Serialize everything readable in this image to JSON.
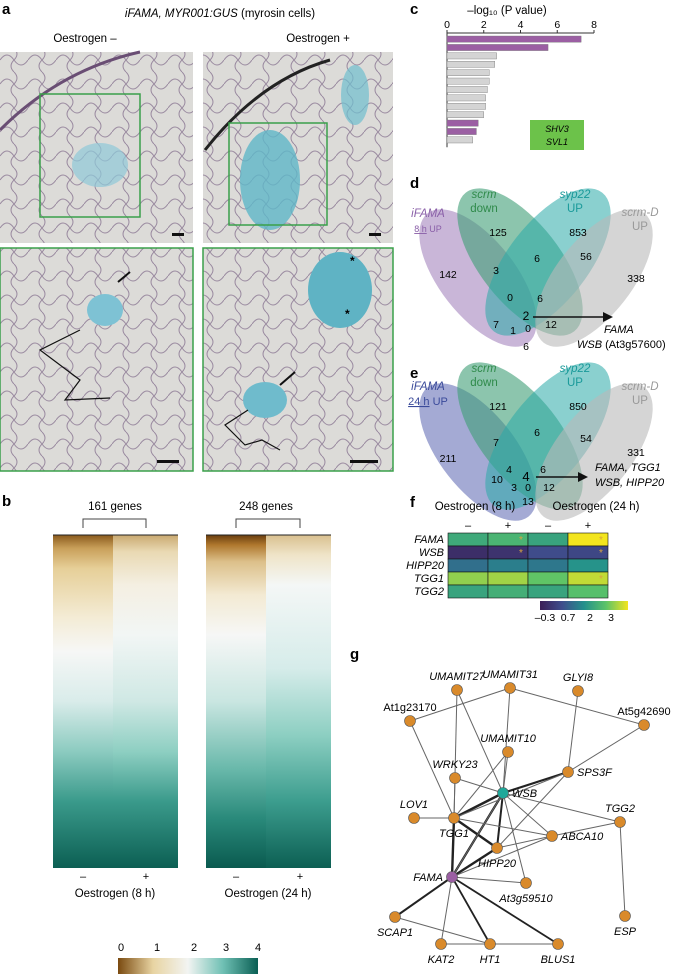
{
  "panels": {
    "a": {
      "letter": "a",
      "title_italic": "iFAMA, MYR001:GUS",
      "title_rest": " (myrosin cells)",
      "col_minus": "Oestrogen –",
      "col_plus": "Oestrogen +"
    },
    "b": {
      "letter": "b",
      "group1_label": "161 genes",
      "group2_label": "248 genes",
      "tick_minus": "–",
      "tick_plus": "+",
      "xlabel1": "Oestrogen (8 h)",
      "xlabel2": "Oestrogen (24 h)",
      "colorbar_ticks": [
        "0",
        "1",
        "2",
        "3",
        "4"
      ]
    },
    "c": {
      "letter": "c",
      "axis_label": "–log₁₀ (P value)",
      "ticks": [
        "0",
        "2",
        "4",
        "6",
        "8"
      ],
      "legend_line1": "SHV3",
      "legend_line2": "SVL1"
    },
    "d": {
      "letter": "d",
      "set_ifama": "iFAMA",
      "set_ifama_sub": "8 h",
      "set_ifama_sub2": " UP",
      "set_scrm": "scrm",
      "set_scrm_sub": "down",
      "set_syp22": "syp22",
      "set_syp22_sub": "UP",
      "set_scrmd": "scrm-D",
      "set_scrmd_sub": "UP",
      "counts": [
        "125",
        "853",
        "142",
        "3",
        "6",
        "56",
        "338",
        "0",
        "6",
        "2",
        "7",
        "1",
        "0",
        "12",
        "6"
      ],
      "callout_line1": "FAMA",
      "callout_line2": "WSB",
      "callout_line2b": " (At3g57600)"
    },
    "e": {
      "letter": "e",
      "set_ifama": "iFAMA",
      "set_ifama_sub": "24 h",
      "set_ifama_sub2": " UP",
      "set_scrm": "scrm",
      "set_scrm_sub": "down",
      "set_syp22": "syp22",
      "set_syp22_sub": "UP",
      "set_scrmd": "scrm-D",
      "set_scrmd_sub": "UP",
      "counts": [
        "121",
        "850",
        "211",
        "7",
        "6",
        "54",
        "331",
        "4",
        "6",
        "4",
        "10",
        "3",
        "0",
        "12",
        "13"
      ],
      "callout_line1": "FAMA, TGG1",
      "callout_line2": "WSB, HIPP20"
    },
    "f": {
      "letter": "f",
      "header1": "Oestrogen (8 h)",
      "header2": "Oestrogen (24 h)",
      "col_signs": [
        "–",
        "+",
        "–",
        "+"
      ],
      "rows": [
        "FAMA",
        "WSB",
        "HIPP20",
        "TGG1",
        "TGG2"
      ],
      "star": "*",
      "colorbar_ticks": [
        "–0.3",
        "0.7",
        "2",
        "3"
      ]
    },
    "g": {
      "letter": "g",
      "nodes": [
        {
          "id": "UMAMIT27",
          "label": "UMAMIT27",
          "italic": true
        },
        {
          "id": "UMAMIT31",
          "label": "UMAMIT31",
          "italic": true
        },
        {
          "id": "GLYI8",
          "label": "GLYI8",
          "italic": true
        },
        {
          "id": "At1g23170",
          "label": "At1g23170",
          "italic": false
        },
        {
          "id": "At5g42690",
          "label": "At5g42690",
          "italic": false
        },
        {
          "id": "UMAMIT10",
          "label": "UMAMIT10",
          "italic": true
        },
        {
          "id": "WRKY23",
          "label": "WRKY23",
          "italic": true
        },
        {
          "id": "WSB",
          "label": "WSB",
          "italic": true
        },
        {
          "id": "SPS3F",
          "label": "SPS3F",
          "italic": true
        },
        {
          "id": "LOV1",
          "label": "LOV1",
          "italic": true
        },
        {
          "id": "TGG2",
          "label": "TGG2",
          "italic": true
        },
        {
          "id": "TGG1",
          "label": "TGG1",
          "italic": true
        },
        {
          "id": "ABCA10",
          "label": "ABCA10",
          "italic": true
        },
        {
          "id": "HIPP20",
          "label": "HIPP20",
          "italic": true
        },
        {
          "id": "FAMA",
          "label": "FAMA",
          "italic": true
        },
        {
          "id": "At3g59510",
          "label": "At3g59510",
          "italic": true
        },
        {
          "id": "SCAP1",
          "label": "SCAP1",
          "italic": true
        },
        {
          "id": "ESP",
          "label": "ESP",
          "italic": true
        },
        {
          "id": "KAT2",
          "label": "KAT2",
          "italic": true
        },
        {
          "id": "HT1",
          "label": "HT1",
          "italic": true
        },
        {
          "id": "BLUS1",
          "label": "BLUS1",
          "italic": true
        }
      ]
    }
  },
  "chart_data": [
    {
      "type": "bar",
      "panel": "c",
      "orientation": "horizontal",
      "xlabel": "–log₁₀ (P value)",
      "xlim": [
        0,
        8
      ],
      "values": [
        7.3,
        5.5,
        2.7,
        2.6,
        2.3,
        2.3,
        2.2,
        2.1,
        2.1,
        2.0,
        1.7,
        1.6,
        1.4
      ],
      "highlight": [
        true,
        true,
        false,
        false,
        false,
        false,
        false,
        false,
        false,
        false,
        true,
        true,
        false
      ],
      "colors": {
        "highlight": "#9b5fa3",
        "normal": "#d4d4d4",
        "legend_box": "#6cc24a"
      }
    },
    {
      "type": "heatmap",
      "panel": "f",
      "rows": [
        "FAMA",
        "WSB",
        "HIPP20",
        "TGG1",
        "TGG2"
      ],
      "columns": [
        "8 h –",
        "8 h +",
        "24 h –",
        "24 h +"
      ],
      "values": [
        [
          2.0,
          2.2,
          1.9,
          3.4
        ],
        [
          0.0,
          0.1,
          0.6,
          0.5
        ],
        [
          1.1,
          1.3,
          1.2,
          1.6
        ],
        [
          2.8,
          2.9,
          2.5,
          3.1
        ],
        [
          1.9,
          2.1,
          1.9,
          2.4
        ]
      ],
      "significant": [
        [
          false,
          true,
          false,
          true
        ],
        [
          false,
          true,
          false,
          true
        ],
        [
          false,
          false,
          false,
          false
        ],
        [
          false,
          false,
          false,
          true
        ],
        [
          false,
          false,
          false,
          false
        ]
      ],
      "vmin": -0.3,
      "vmax": 3.4
    }
  ]
}
